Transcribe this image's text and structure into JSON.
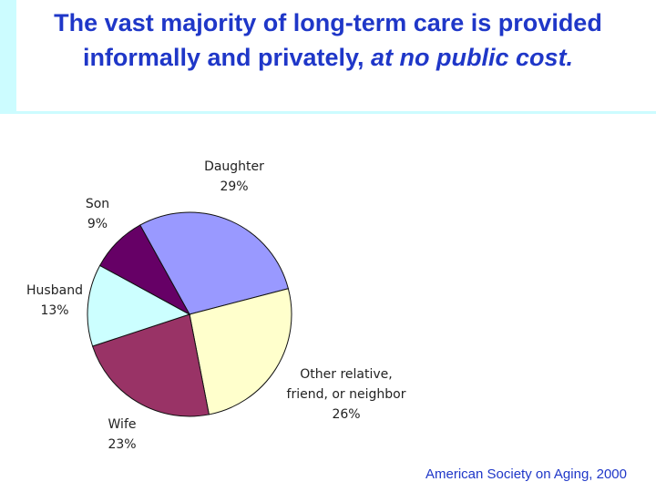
{
  "title": {
    "plain": "The vast majority of long-term care is provided informally and privately,",
    "emphasis": "at no public cost."
  },
  "source": "American Society on Aging, 2000",
  "colors": {
    "title": "#1f37c8",
    "band": "#ccfcff"
  },
  "chart_data": {
    "type": "pie",
    "title": "",
    "slices": [
      {
        "label_lines": [
          "Daughter"
        ],
        "value_label": "29%",
        "value": 29,
        "color": "#9999ff"
      },
      {
        "label_lines": [
          "Other relative,",
          "friend, or neighbor"
        ],
        "value_label": "26%",
        "value": 26,
        "color": "#ffffcc"
      },
      {
        "label_lines": [
          "Wife"
        ],
        "value_label": "23%",
        "value": 23,
        "color": "#993366"
      },
      {
        "label_lines": [
          "Husband"
        ],
        "value_label": "13%",
        "value": 13,
        "color": "#ccffff"
      },
      {
        "label_lines": [
          "Son"
        ],
        "value_label": "9%",
        "value": 9,
        "color": "#660066"
      }
    ]
  }
}
